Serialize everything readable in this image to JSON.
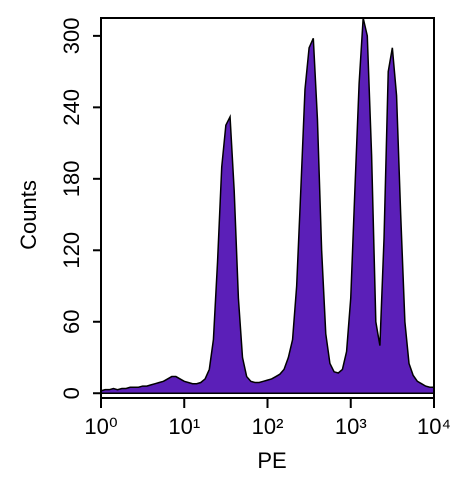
{
  "chart_data": {
    "type": "area",
    "x_label": "PE",
    "y_label": "Counts",
    "x": [
      1,
      1.12,
      1.26,
      1.41,
      1.58,
      1.78,
      2,
      2.24,
      2.51,
      2.82,
      3.16,
      3.55,
      3.98,
      4.47,
      5.01,
      5.62,
      6.31,
      7.08,
      7.94,
      8.91,
      10,
      11.2,
      12.6,
      14.1,
      15.8,
      17.8,
      20,
      22.4,
      25.1,
      28.2,
      31.6,
      35.5,
      39.8,
      44.7,
      50.1,
      56.2,
      63.1,
      70.8,
      79.4,
      89.1,
      100,
      112,
      126,
      141,
      158,
      178,
      200,
      224,
      251,
      282,
      316,
      355,
      398,
      447,
      501,
      562,
      631,
      708,
      794,
      891,
      1000,
      1120,
      1260,
      1410,
      1580,
      1780,
      2000,
      2240,
      2510,
      2820,
      3160,
      3550,
      3980,
      4470,
      5010,
      5620,
      6310,
      7080,
      7940,
      8910,
      10000
    ],
    "values": [
      2,
      3,
      3,
      4,
      3,
      4,
      4,
      5,
      5,
      5,
      6,
      6,
      7,
      8,
      9,
      10,
      12,
      14,
      14,
      12,
      10,
      9,
      8,
      8,
      9,
      12,
      20,
      45,
      110,
      190,
      225,
      232,
      170,
      80,
      30,
      14,
      10,
      9,
      9,
      10,
      11,
      12,
      14,
      16,
      20,
      30,
      45,
      90,
      170,
      255,
      290,
      298,
      230,
      120,
      50,
      25,
      18,
      17,
      20,
      35,
      80,
      170,
      260,
      315,
      300,
      200,
      60,
      40,
      130,
      270,
      290,
      250,
      150,
      60,
      25,
      15,
      10,
      8,
      6,
      5,
      5
    ],
    "color": "#5b1fb8",
    "log_x": true,
    "xlim": [
      1,
      10000
    ],
    "xticks": [
      {
        "value": 1,
        "label": "10⁰"
      },
      {
        "value": 10,
        "label": "10¹"
      },
      {
        "value": 100,
        "label": "10²"
      },
      {
        "value": 1000,
        "label": "10³"
      },
      {
        "value": 10000,
        "label": "10⁴"
      }
    ],
    "ylim": [
      -4,
      315
    ],
    "yticks": [
      0,
      60,
      120,
      180,
      240,
      300
    ]
  }
}
